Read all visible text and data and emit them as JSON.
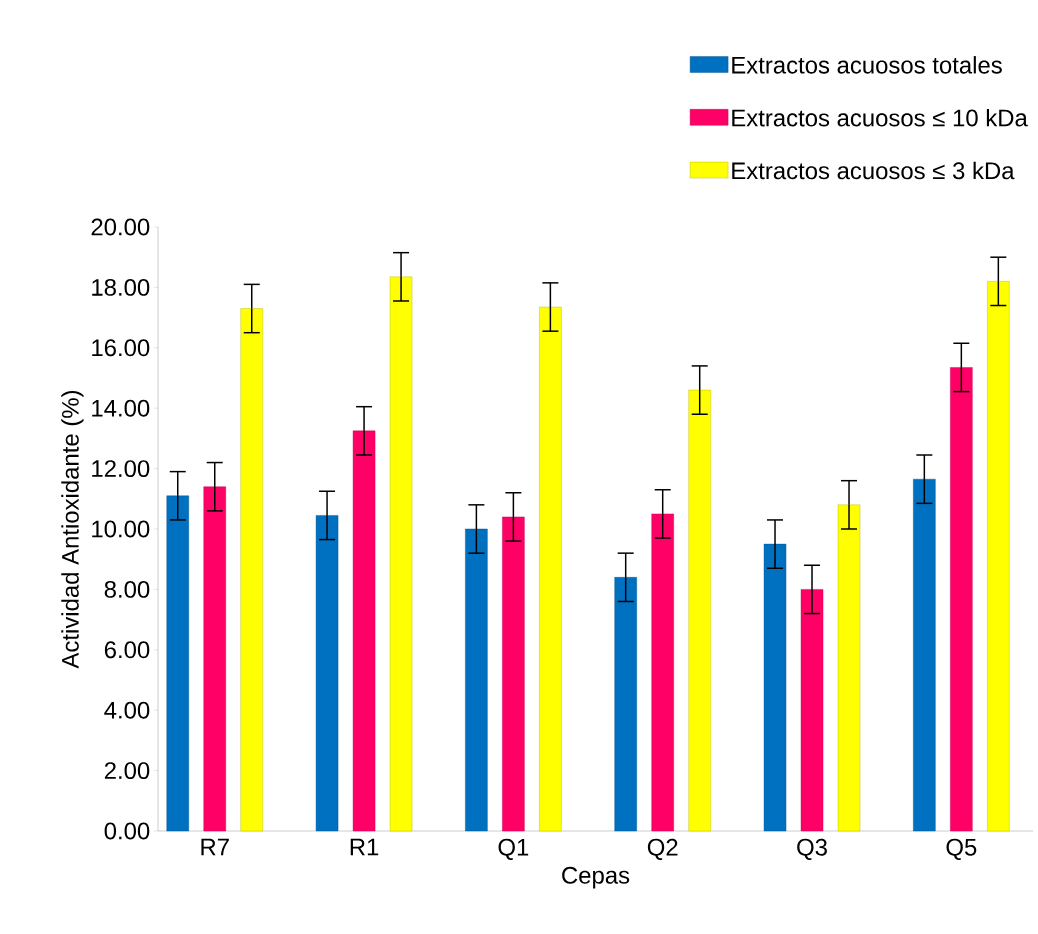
{
  "chart_data": {
    "type": "bar",
    "xlabel": "Cepas",
    "ylabel": "Actividad Antioxidante (%)",
    "categories": [
      "R7",
      "R1",
      "Q1",
      "Q2",
      "Q3",
      "Q5"
    ],
    "series": [
      {
        "name": "Extractos acuosos totales",
        "color": "#0070c0",
        "values": [
          11.1,
          10.45,
          10.0,
          8.4,
          9.5,
          11.65
        ],
        "errors": [
          0.8,
          0.8,
          0.8,
          0.8,
          0.8,
          0.8
        ]
      },
      {
        "name": "Extractos acuosos ≤ 10 kDa",
        "color": "#ff0066",
        "values": [
          11.4,
          13.25,
          10.4,
          10.5,
          8.0,
          15.35
        ],
        "errors": [
          0.8,
          0.8,
          0.8,
          0.8,
          0.8,
          0.8
        ]
      },
      {
        "name": "Extractos acuosos ≤ 3 kDa",
        "color": "#ffff00",
        "values": [
          17.3,
          18.35,
          17.35,
          14.6,
          10.8,
          18.2
        ],
        "errors": [
          0.8,
          0.8,
          0.8,
          0.8,
          0.8,
          0.8
        ]
      }
    ],
    "ylim": [
      0,
      20
    ],
    "yticks": [
      {
        "value": 0,
        "label": "0.00"
      },
      {
        "value": 2,
        "label": "2.00"
      },
      {
        "value": 4,
        "label": "4.00"
      },
      {
        "value": 6,
        "label": "6.00"
      },
      {
        "value": 8,
        "label": "8.00"
      },
      {
        "value": 10,
        "label": "10.00"
      },
      {
        "value": 12,
        "label": "12.00"
      },
      {
        "value": 14,
        "label": "14.00"
      },
      {
        "value": 16,
        "label": "16.00"
      },
      {
        "value": 18,
        "label": "18.00"
      },
      {
        "value": 20,
        "label": "20.00"
      }
    ],
    "grid": false,
    "legend": "top right"
  }
}
